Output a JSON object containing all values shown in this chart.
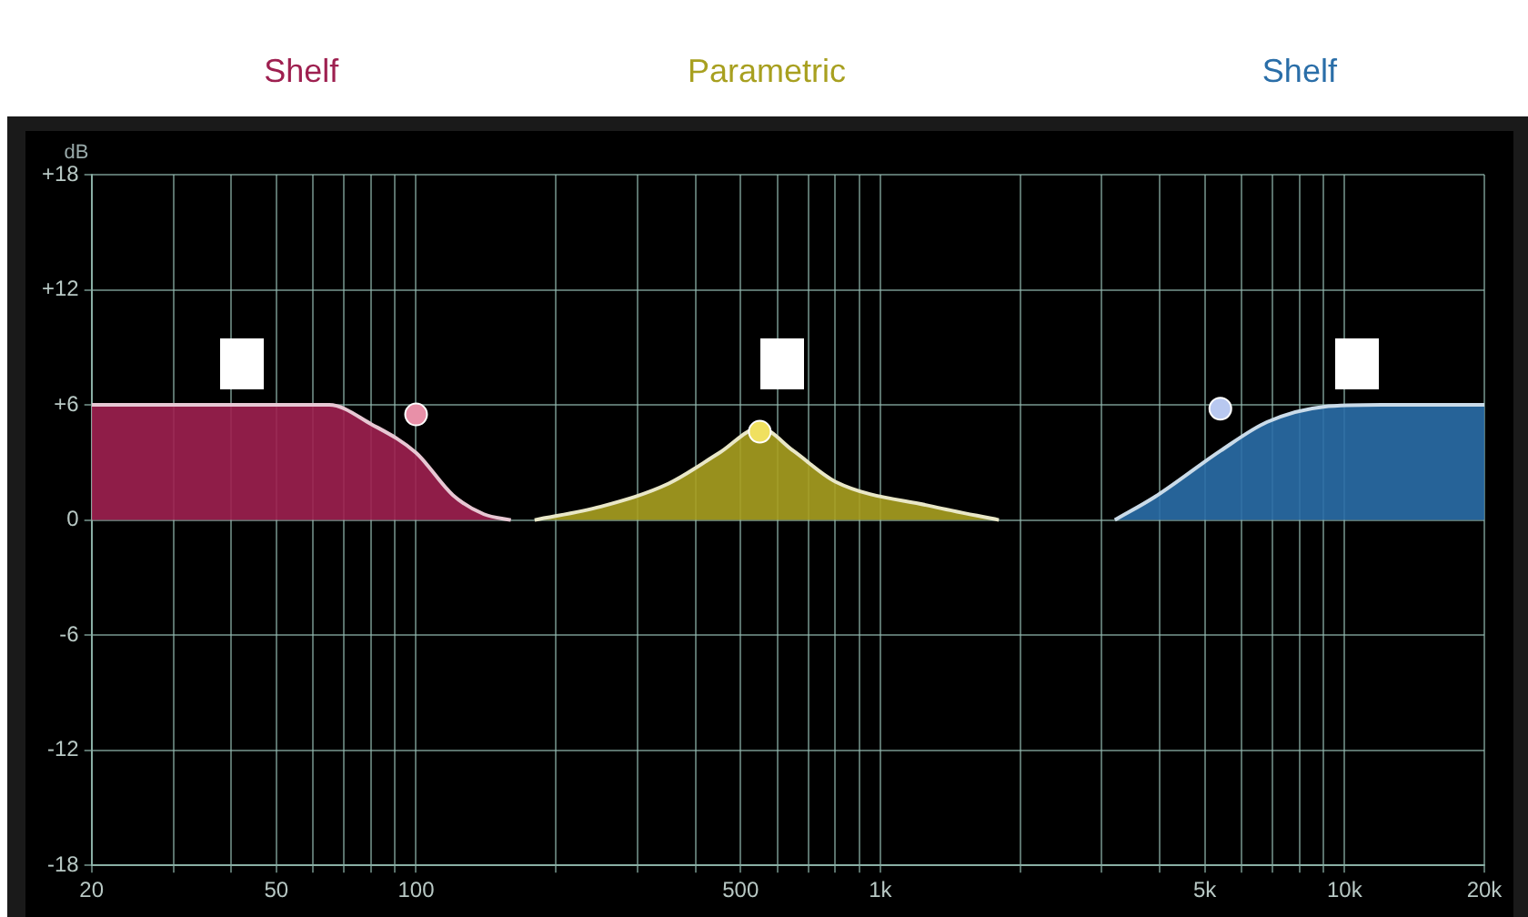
{
  "chart_data": {
    "type": "area",
    "ylabel": "dB",
    "log": "x",
    "grid": true,
    "legend": false,
    "marker": "none",
    "xlim": [
      20,
      20000
    ],
    "ylim": [
      -18,
      18
    ],
    "xticks": [
      20,
      {
        "value": 30,
        "label": null
      },
      {
        "value": 40,
        "label": null
      },
      50,
      {
        "value": 60,
        "label": null
      },
      {
        "value": 70,
        "label": null
      },
      {
        "value": 80,
        "label": null
      },
      {
        "value": 90,
        "label": null
      },
      100,
      {
        "value": 200,
        "label": null
      },
      {
        "value": 300,
        "label": null
      },
      {
        "value": 400,
        "label": null
      },
      500,
      {
        "value": 600,
        "label": null
      },
      {
        "value": 700,
        "label": null
      },
      {
        "value": 800,
        "label": null
      },
      {
        "value": 900,
        "label": null
      },
      {
        "value": 1000,
        "label": "1k"
      },
      {
        "value": 2000,
        "label": null
      },
      {
        "value": 3000,
        "label": null
      },
      {
        "value": 4000,
        "label": null
      },
      {
        "value": 5000,
        "label": "5k"
      },
      {
        "value": 6000,
        "label": null
      },
      {
        "value": 7000,
        "label": null
      },
      {
        "value": 8000,
        "label": null
      },
      {
        "value": 9000,
        "label": null
      },
      {
        "value": 10000,
        "label": "10k"
      },
      {
        "value": 20000,
        "label": "20k"
      }
    ],
    "yticks": [
      {
        "value": 18,
        "label": "+18"
      },
      {
        "value": 12,
        "label": "+12"
      },
      {
        "value": 6,
        "label": "+6"
      },
      0,
      -6,
      -12,
      -18
    ],
    "series": [
      {
        "name": "Shelf",
        "color": "#9e2050",
        "x": [
          20,
          40,
          65,
          80,
          100,
          120,
          140,
          160
        ],
        "values": [
          6,
          6,
          6,
          5,
          3.5,
          1.3,
          0.3,
          0
        ]
      },
      {
        "name": "Parametric",
        "color": "#a8a020",
        "x": [
          180,
          250,
          350,
          450,
          550,
          650,
          800,
          1300,
          1800
        ],
        "values": [
          0,
          0.7,
          1.9,
          3.5,
          4.8,
          3.6,
          2,
          0.7,
          0
        ]
      },
      {
        "name": "Shelf",
        "color": "#2a6ea8",
        "x": [
          3200,
          3900,
          5400,
          6800,
          9000,
          12000,
          20000
        ],
        "values": [
          0,
          1.2,
          3.6,
          5.1,
          5.9,
          6,
          6
        ]
      },
      {
        "type": "scatter",
        "marker": "circle",
        "colors": [
          "#e890a8",
          "#f0e060",
          "#b8c8f0"
        ],
        "x": [
          100,
          550,
          5400
        ],
        "values": [
          5.5,
          4.6,
          5.8
        ]
      }
    ]
  }
}
